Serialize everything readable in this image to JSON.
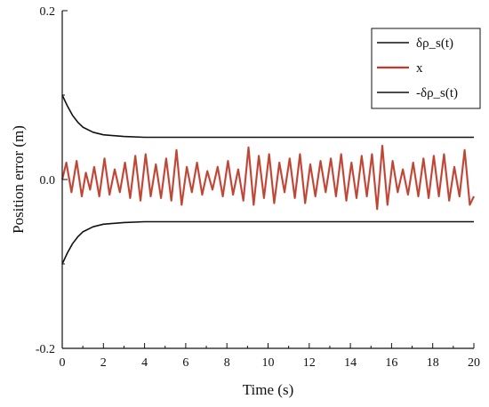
{
  "chart_data": {
    "type": "line",
    "xlabel": "Time (s)",
    "ylabel": "Position error (m)",
    "xlim": [
      0,
      20
    ],
    "ylim": [
      -0.2,
      0.2
    ],
    "x_ticks": [
      0,
      2,
      4,
      6,
      8,
      10,
      12,
      14,
      16,
      18,
      20
    ],
    "x_tick_labels": [
      "0",
      "2",
      "4",
      "6",
      "8",
      "10",
      "12",
      "14",
      "16",
      "18",
      "20"
    ],
    "y_ticks": [
      -0.2,
      0.0,
      0.2
    ],
    "y_tick_labels": [
      "-0.2",
      "0.0",
      "0.2"
    ],
    "grid": false,
    "legend_position": "top-right",
    "series": [
      {
        "name": "δρ_s(t)",
        "color": "#111111",
        "points": [
          [
            0,
            0.1
          ],
          [
            0.25,
            0.087
          ],
          [
            0.5,
            0.076
          ],
          [
            0.75,
            0.068
          ],
          [
            1,
            0.062
          ],
          [
            1.5,
            0.056
          ],
          [
            2,
            0.053
          ],
          [
            3,
            0.051
          ],
          [
            4,
            0.05
          ],
          [
            6,
            0.05
          ],
          [
            10,
            0.05
          ],
          [
            15,
            0.05
          ],
          [
            20,
            0.05
          ]
        ]
      },
      {
        "name": "x",
        "color": "#a0522d",
        "color_secondary": "#e8202a",
        "points": [
          [
            0,
            0.0
          ],
          [
            0.2,
            0.02
          ],
          [
            0.45,
            -0.015
          ],
          [
            0.7,
            0.022
          ],
          [
            0.95,
            -0.02
          ],
          [
            1.15,
            0.008
          ],
          [
            1.35,
            -0.012
          ],
          [
            1.55,
            0.015
          ],
          [
            1.8,
            -0.02
          ],
          [
            2.05,
            0.025
          ],
          [
            2.3,
            -0.018
          ],
          [
            2.55,
            0.012
          ],
          [
            2.8,
            -0.015
          ],
          [
            3.05,
            0.02
          ],
          [
            3.3,
            -0.022
          ],
          [
            3.55,
            0.028
          ],
          [
            3.8,
            -0.025
          ],
          [
            4.05,
            0.03
          ],
          [
            4.3,
            -0.02
          ],
          [
            4.55,
            0.018
          ],
          [
            4.8,
            -0.022
          ],
          [
            5.05,
            0.025
          ],
          [
            5.3,
            -0.025
          ],
          [
            5.55,
            0.035
          ],
          [
            5.8,
            -0.03
          ],
          [
            6.05,
            0.015
          ],
          [
            6.3,
            -0.015
          ],
          [
            6.55,
            0.02
          ],
          [
            6.8,
            -0.018
          ],
          [
            7.05,
            0.01
          ],
          [
            7.3,
            -0.012
          ],
          [
            7.55,
            0.015
          ],
          [
            7.8,
            -0.02
          ],
          [
            8.05,
            0.022
          ],
          [
            8.3,
            -0.018
          ],
          [
            8.55,
            0.012
          ],
          [
            8.8,
            -0.025
          ],
          [
            9.05,
            0.038
          ],
          [
            9.3,
            -0.03
          ],
          [
            9.55,
            0.028
          ],
          [
            9.8,
            -0.022
          ],
          [
            10.05,
            0.03
          ],
          [
            10.3,
            -0.028
          ],
          [
            10.55,
            0.02
          ],
          [
            10.8,
            -0.015
          ],
          [
            11.05,
            0.025
          ],
          [
            11.3,
            -0.022
          ],
          [
            11.55,
            0.03
          ],
          [
            11.8,
            -0.028
          ],
          [
            12.05,
            0.018
          ],
          [
            12.3,
            -0.02
          ],
          [
            12.55,
            0.022
          ],
          [
            12.8,
            -0.015
          ],
          [
            13.05,
            0.025
          ],
          [
            13.3,
            -0.02
          ],
          [
            13.55,
            0.03
          ],
          [
            13.8,
            -0.025
          ],
          [
            14.05,
            0.02
          ],
          [
            14.3,
            -0.022
          ],
          [
            14.55,
            0.028
          ],
          [
            14.8,
            -0.02
          ],
          [
            15.05,
            0.03
          ],
          [
            15.3,
            -0.035
          ],
          [
            15.55,
            0.04
          ],
          [
            15.8,
            -0.03
          ],
          [
            16.05,
            0.022
          ],
          [
            16.3,
            -0.015
          ],
          [
            16.55,
            0.012
          ],
          [
            16.8,
            -0.018
          ],
          [
            17.05,
            0.02
          ],
          [
            17.3,
            -0.02
          ],
          [
            17.55,
            0.025
          ],
          [
            17.8,
            -0.022
          ],
          [
            18.05,
            0.028
          ],
          [
            18.3,
            -0.02
          ],
          [
            18.55,
            0.03
          ],
          [
            18.8,
            -0.025
          ],
          [
            19.05,
            0.015
          ],
          [
            19.3,
            -0.02
          ],
          [
            19.55,
            0.035
          ],
          [
            19.8,
            -0.03
          ],
          [
            20.0,
            -0.02
          ]
        ]
      },
      {
        "name": "-δρ_s(t)",
        "color": "#111111",
        "points": [
          [
            0,
            -0.1
          ],
          [
            0.25,
            -0.087
          ],
          [
            0.5,
            -0.076
          ],
          [
            0.75,
            -0.068
          ],
          [
            1,
            -0.062
          ],
          [
            1.5,
            -0.056
          ],
          [
            2,
            -0.053
          ],
          [
            3,
            -0.051
          ],
          [
            4,
            -0.05
          ],
          [
            6,
            -0.05
          ],
          [
            10,
            -0.05
          ],
          [
            15,
            -0.05
          ],
          [
            20,
            -0.05
          ]
        ]
      }
    ]
  }
}
